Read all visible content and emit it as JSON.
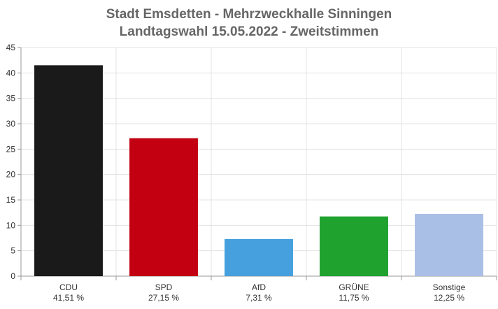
{
  "chart_data": {
    "type": "bar",
    "title": "Stadt Emsdetten - Mehrzweckhalle Sinningen",
    "subtitle": "Landtagswahl 15.05.2022  - Zweitstimmen",
    "categories": [
      "CDU",
      "SPD",
      "AfD",
      "GRÜNE",
      "Sonstige"
    ],
    "value_labels": [
      "41,51 %",
      "27,15 %",
      "7,31 %",
      "11,75 %",
      "12,25 %"
    ],
    "values": [
      41.51,
      27.15,
      7.31,
      11.75,
      12.25
    ],
    "colors": [
      "#1a1a1a",
      "#c20012",
      "#46a0de",
      "#1fa22e",
      "#aabfe6"
    ],
    "ylim": [
      0,
      45
    ],
    "yticks": [
      0,
      5,
      10,
      15,
      20,
      25,
      30,
      35,
      40,
      45
    ],
    "grid": true,
    "xlabel": "",
    "ylabel": ""
  }
}
